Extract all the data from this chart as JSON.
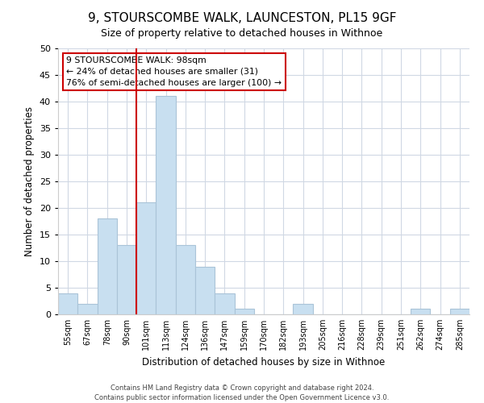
{
  "title": "9, STOURSCOMBE WALK, LAUNCESTON, PL15 9GF",
  "subtitle": "Size of property relative to detached houses in Withnoe",
  "xlabel": "Distribution of detached houses by size in Withnoe",
  "ylabel": "Number of detached properties",
  "footer_line1": "Contains HM Land Registry data © Crown copyright and database right 2024.",
  "footer_line2": "Contains public sector information licensed under the Open Government Licence v3.0.",
  "bins": [
    "55sqm",
    "67sqm",
    "78sqm",
    "90sqm",
    "101sqm",
    "113sqm",
    "124sqm",
    "136sqm",
    "147sqm",
    "159sqm",
    "170sqm",
    "182sqm",
    "193sqm",
    "205sqm",
    "216sqm",
    "228sqm",
    "239sqm",
    "251sqm",
    "262sqm",
    "274sqm",
    "285sqm"
  ],
  "values": [
    4,
    2,
    18,
    13,
    21,
    41,
    13,
    9,
    4,
    1,
    0,
    0,
    2,
    0,
    0,
    0,
    0,
    0,
    1,
    0,
    1
  ],
  "bar_color": "#c8dff0",
  "bar_edge_color": "#aac4d8",
  "vline_color": "#cc0000",
  "vline_x_index": 4,
  "annotation_title": "9 STOURSCOMBE WALK: 98sqm",
  "annotation_line1": "← 24% of detached houses are smaller (31)",
  "annotation_line2": "76% of semi-detached houses are larger (100) →",
  "annotation_box_color": "#ffffff",
  "annotation_border_color": "#cc0000",
  "ylim": [
    0,
    50
  ],
  "yticks": [
    0,
    5,
    10,
    15,
    20,
    25,
    30,
    35,
    40,
    45,
    50
  ],
  "grid_color": "#d0d8e4",
  "title_fontsize": 11,
  "subtitle_fontsize": 9,
  "xlabel_fontsize": 8.5,
  "ylabel_fontsize": 8.5,
  "tick_fontsize": 8,
  "xtick_fontsize": 7
}
